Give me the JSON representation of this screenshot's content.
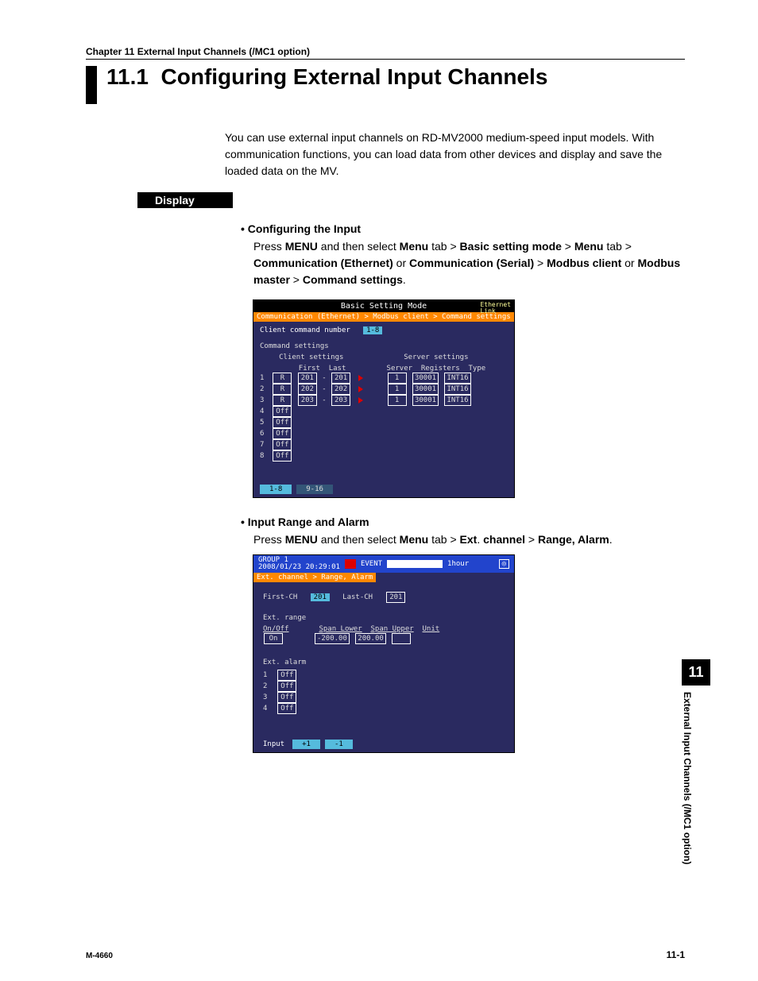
{
  "chapter_header": "Chapter 11    External Input Channels (/MC1 option)",
  "section_number": "11.1",
  "section_title": "Configuring External Input Channels",
  "intro": "You can use external input channels on RD-MV2000 medium-speed input models. With communication functions, you can load data from other devices and display and save the loaded data on the MV.",
  "display_label": "Display",
  "config_heading": "Configuring the Input",
  "config_step": {
    "press": "Press ",
    "menu1": "MENU",
    "t1": " and then select ",
    "menu2": "Menu",
    "t2": " tab > ",
    "bsm": "Basic setting mode",
    "t3": " > ",
    "menu3": "Menu",
    "t4": " tab > ",
    "ce": "Communication (Ethernet)",
    "or1": " or ",
    "cs": "Communication (Serial)",
    "t5": " > ",
    "mc": "Modbus client",
    "or2": " or ",
    "mm": "Modbus master",
    "t6": " > ",
    "cmd": "Command settings",
    "end": "."
  },
  "screenshot1": {
    "title": "Basic Setting Mode",
    "eth1": "Ethernet",
    "eth2": "Link",
    "breadcrumb": "Communication (Ethernet) > Modbus client > Command settings",
    "ccn_label": "Client command number",
    "ccn_value": "1-8",
    "cmd_settings_label": "Command settings",
    "client_header": "Client settings",
    "server_header": "Server settings",
    "cols": {
      "first": "First",
      "last": "Last",
      "server": "Server",
      "registers": "Registers",
      "type": "Type"
    },
    "rows": [
      {
        "n": "1",
        "onoff": "R",
        "first": "201",
        "last": "201",
        "server": "1",
        "reg": "30001",
        "type": "INT16"
      },
      {
        "n": "2",
        "onoff": "R",
        "first": "202",
        "last": "202",
        "server": "1",
        "reg": "30001",
        "type": "INT16"
      },
      {
        "n": "3",
        "onoff": "R",
        "first": "203",
        "last": "203",
        "server": "1",
        "reg": "30001",
        "type": "INT16"
      },
      {
        "n": "4",
        "onoff": "Off"
      },
      {
        "n": "5",
        "onoff": "Off"
      },
      {
        "n": "6",
        "onoff": "Off"
      },
      {
        "n": "7",
        "onoff": "Off"
      },
      {
        "n": "8",
        "onoff": "Off"
      }
    ],
    "tab1": "1-8",
    "tab2": "9-16"
  },
  "range_heading": "Input Range and Alarm",
  "range_step": {
    "press": "Press ",
    "menu1": "MENU",
    "t1": " and then select ",
    "menu2": "Menu",
    "t2": " tab > ",
    "ext": "Ext",
    "dot": ". ",
    "channel": "channel",
    "t3": " > ",
    "ra": "Range, Alarm",
    "end": "."
  },
  "screenshot2": {
    "group": "GROUP 1",
    "datetime": "2008/01/23 20:29:01",
    "event": "EVENT",
    "hour": "1hour",
    "breadcrumb": "Ext. channel > Range, Alarm",
    "first_ch_label": "First-CH",
    "first_ch_val": "201",
    "last_ch_label": "Last-CH",
    "last_ch_val": "201",
    "ext_range_label": "Ext. range",
    "onoff_label": "On/Off",
    "onoff_val": "On",
    "span_lower_label": "Span Lower",
    "span_lower_val": "-200.00",
    "span_upper_label": "Span Upper",
    "span_upper_val": "200.00",
    "unit_label": "Unit",
    "ext_alarm_label": "Ext. alarm",
    "alarm_rows": [
      {
        "n": "1",
        "v": "Off"
      },
      {
        "n": "2",
        "v": "Off"
      },
      {
        "n": "3",
        "v": "Off"
      },
      {
        "n": "4",
        "v": "Off"
      }
    ],
    "input_tab": "Input",
    "plus": "+1",
    "minus": "-1"
  },
  "side_tab_num": "11",
  "side_tab_text": "External Input Channels (/MC1 option)",
  "footer_left": "M-4660",
  "footer_right": "11-1"
}
